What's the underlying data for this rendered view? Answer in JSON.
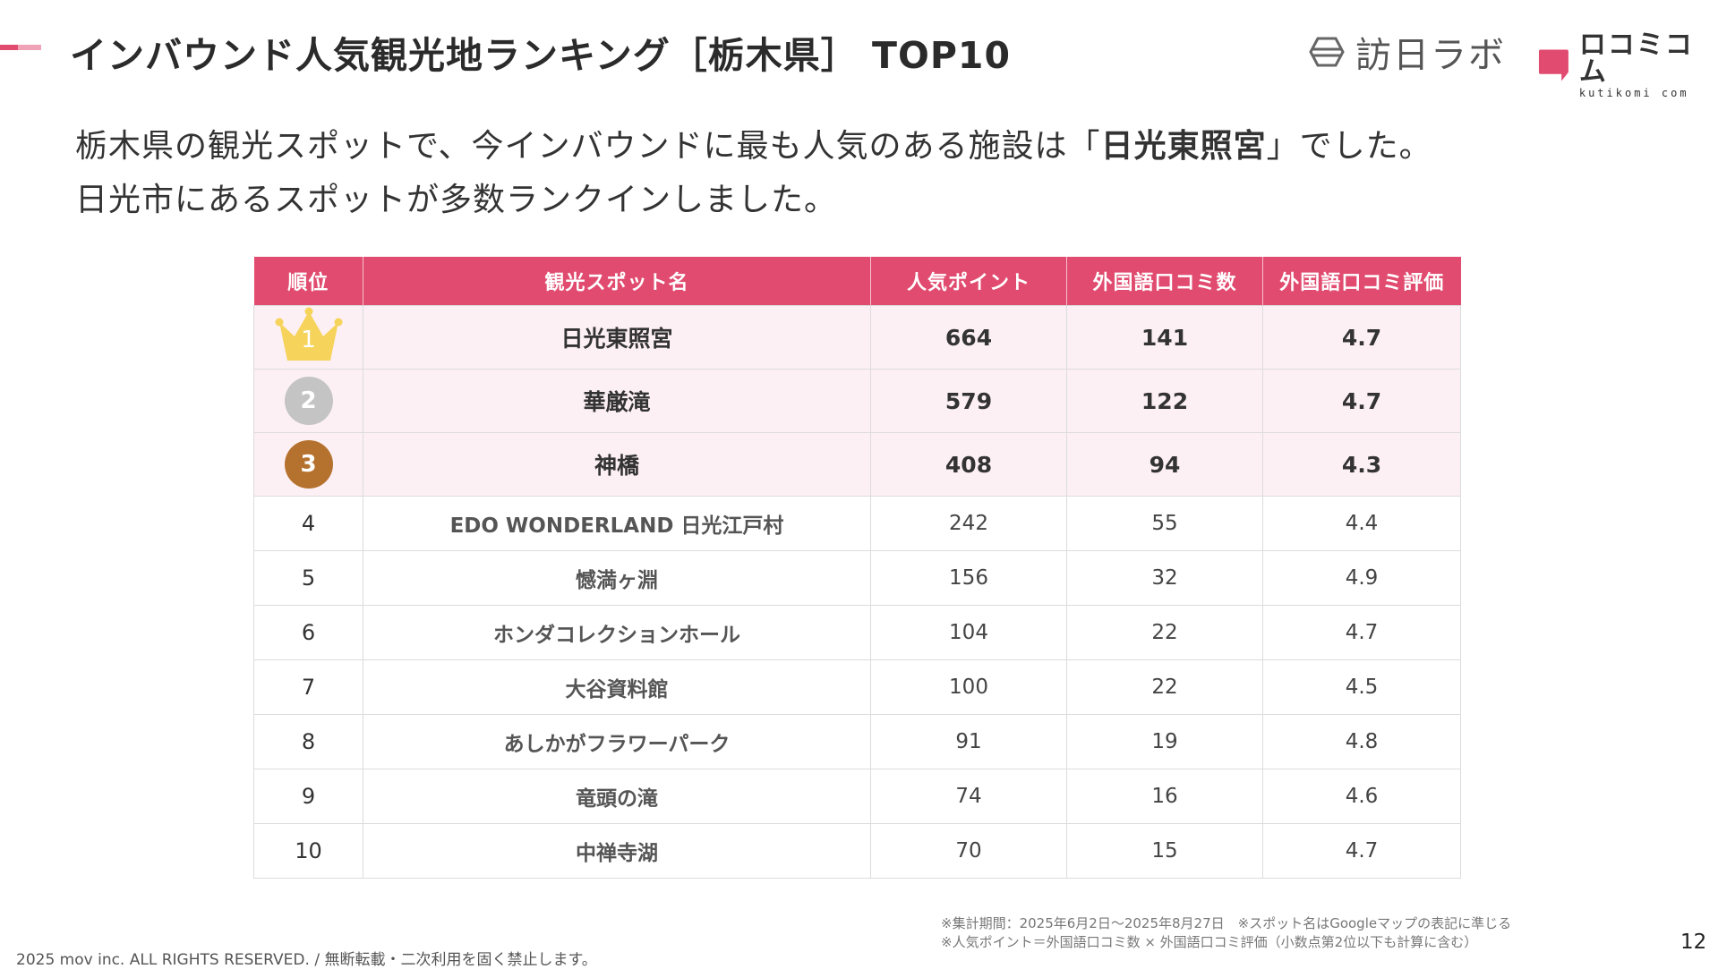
{
  "header": {
    "title": "インバウンド人気観光地ランキング［栃木県］ TOP10"
  },
  "logos": {
    "houjin_text": "訪日ラボ",
    "kuchikomi_jp": "ロコミコム",
    "kuchikomi_en": "kutikomi com"
  },
  "lead": {
    "line1_before": "栃木県の観光スポットで、今インバウンドに最も人気のある施設は「",
    "line1_highlight": "日光東照宮",
    "line1_after": "」でした。",
    "line2": "日光市にあるスポットが多数ランクインしました。"
  },
  "table": {
    "headers": [
      "順位",
      "観光スポット名",
      "人気ポイント",
      "外国語口コミ数",
      "外国語口コミ評価"
    ],
    "rows": [
      {
        "rank": "1",
        "name": "日光東照宮",
        "points": "664",
        "reviews": "141",
        "rating": "4.7"
      },
      {
        "rank": "2",
        "name": "華厳滝",
        "points": "579",
        "reviews": "122",
        "rating": "4.7"
      },
      {
        "rank": "3",
        "name": "神橋",
        "points": "408",
        "reviews": "94",
        "rating": "4.3"
      },
      {
        "rank": "4",
        "name": "EDO WONDERLAND 日光江戸村",
        "points": "242",
        "reviews": "55",
        "rating": "4.4"
      },
      {
        "rank": "5",
        "name": "憾満ヶ淵",
        "points": "156",
        "reviews": "32",
        "rating": "4.9"
      },
      {
        "rank": "6",
        "name": "ホンダコレクションホール",
        "points": "104",
        "reviews": "22",
        "rating": "4.7"
      },
      {
        "rank": "7",
        "name": "大谷資料館",
        "points": "100",
        "reviews": "22",
        "rating": "4.5"
      },
      {
        "rank": "8",
        "name": "あしかがフラワーパーク",
        "points": "91",
        "reviews": "19",
        "rating": "4.8"
      },
      {
        "rank": "9",
        "name": "竜頭の滝",
        "points": "74",
        "reviews": "16",
        "rating": "4.6"
      },
      {
        "rank": "10",
        "name": "中禅寺湖",
        "points": "70",
        "reviews": "15",
        "rating": "4.7"
      }
    ]
  },
  "notes": {
    "line1": "※集計期間：2025年6月2日〜2025年8月27日　※スポット名はGoogleマップの表記に準じる",
    "line2": "※人気ポイント＝外国語口コミ数 × 外国語口コミ評価（小数点第2位以下も計算に含む）"
  },
  "footer": {
    "copyright": "2025 mov inc. ALL RIGHTS RESERVED. / 無断転載・二次利用を固く禁止します。",
    "page_number": "12"
  },
  "colors": {
    "accent": "#e14b6f",
    "accent_light": "#f0a3b6",
    "top_row_bg": "#fdf0f4",
    "gold": "#f6d35b",
    "silver": "#c4c4c4",
    "bronze": "#b5722e"
  },
  "icons": {
    "rank1": "crown-icon",
    "rank2": "silver-medal-icon",
    "rank3": "bronze-medal-icon",
    "houjin_logo": "houjin-lab-logo-icon",
    "kuchikomi_logo": "kuchikomi-logo-icon"
  }
}
